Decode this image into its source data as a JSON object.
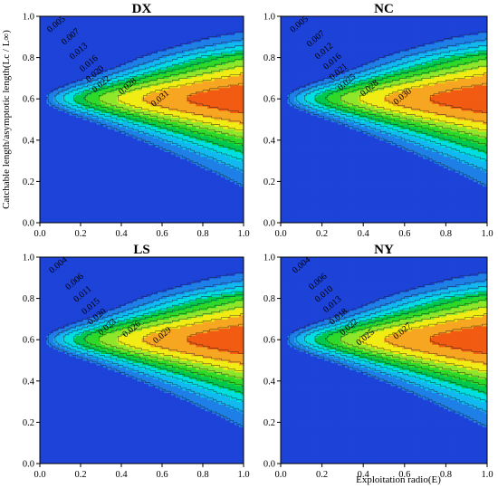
{
  "figure": {
    "ylabel": "Catchable length/asymptotic length(Lc / L∞)",
    "xlabel": "Exploitation radio(E)"
  },
  "chart_data": [
    {
      "type": "heatmap",
      "title": "DX",
      "x_ticks": [
        "0.0",
        "0.2",
        "0.4",
        "0.6",
        "0.8",
        "1.0"
      ],
      "y_ticks": [
        "0.0",
        "0.2",
        "0.4",
        "0.6",
        "0.8",
        "1.0"
      ],
      "xlim": [
        0,
        1
      ],
      "ylim": [
        0,
        1
      ],
      "contour_labels": [
        {
          "text": "0.005",
          "at": [
            0.05,
            0.92
          ]
        },
        {
          "text": "0.007",
          "at": [
            0.12,
            0.86
          ]
        },
        {
          "text": "0.013",
          "at": [
            0.16,
            0.79
          ]
        },
        {
          "text": "0.016",
          "at": [
            0.21,
            0.73
          ]
        },
        {
          "text": "0.020",
          "at": [
            0.24,
            0.68
          ]
        },
        {
          "text": "0.022",
          "at": [
            0.27,
            0.63
          ]
        },
        {
          "text": "0.028",
          "at": [
            0.4,
            0.62
          ]
        },
        {
          "text": "0.031",
          "at": [
            0.56,
            0.56
          ]
        }
      ]
    },
    {
      "type": "heatmap",
      "title": "NC",
      "x_ticks": [
        "0.0",
        "0.2",
        "0.4",
        "0.6",
        "0.8",
        "1.0"
      ],
      "y_ticks": [
        "0.0",
        "0.2",
        "0.4",
        "0.6",
        "0.8",
        "1.0"
      ],
      "xlim": [
        0,
        1
      ],
      "ylim": [
        0,
        1
      ],
      "contour_labels": [
        {
          "text": "0.005",
          "at": [
            0.06,
            0.92
          ]
        },
        {
          "text": "0.007",
          "at": [
            0.14,
            0.85
          ]
        },
        {
          "text": "0.012",
          "at": [
            0.18,
            0.79
          ]
        },
        {
          "text": "0.016",
          "at": [
            0.22,
            0.74
          ]
        },
        {
          "text": "0.021",
          "at": [
            0.25,
            0.69
          ]
        },
        {
          "text": "0.025",
          "at": [
            0.29,
            0.64
          ]
        },
        {
          "text": "0.028",
          "at": [
            0.4,
            0.61
          ]
        },
        {
          "text": "0.030",
          "at": [
            0.56,
            0.57
          ]
        }
      ]
    },
    {
      "type": "heatmap",
      "title": "LS",
      "x_ticks": [
        "0.0",
        "0.2",
        "0.4",
        "0.6",
        "0.8",
        "1.0"
      ],
      "y_ticks": [
        "0.0",
        "0.2",
        "0.4",
        "0.6",
        "0.8",
        "1.0"
      ],
      "xlim": [
        0,
        1
      ],
      "ylim": [
        0,
        1
      ],
      "contour_labels": [
        {
          "text": "0.004",
          "at": [
            0.06,
            0.92
          ]
        },
        {
          "text": "0.006",
          "at": [
            0.14,
            0.84
          ]
        },
        {
          "text": "0.011",
          "at": [
            0.18,
            0.78
          ]
        },
        {
          "text": "0.015",
          "at": [
            0.22,
            0.72
          ]
        },
        {
          "text": "0.020",
          "at": [
            0.25,
            0.67
          ]
        },
        {
          "text": "0.023",
          "at": [
            0.3,
            0.62
          ]
        },
        {
          "text": "0.026",
          "at": [
            0.42,
            0.61
          ]
        },
        {
          "text": "0.029",
          "at": [
            0.57,
            0.58
          ]
        }
      ]
    },
    {
      "type": "heatmap",
      "title": "NY",
      "x_ticks": [
        "0.0",
        "0.2",
        "0.4",
        "0.6",
        "0.8",
        "1.0"
      ],
      "y_ticks": [
        "0.0",
        "0.2",
        "0.4",
        "0.6",
        "0.8",
        "1.0"
      ],
      "xlim": [
        0,
        1
      ],
      "ylim": [
        0,
        1
      ],
      "contour_labels": [
        {
          "text": "0.004",
          "at": [
            0.07,
            0.92
          ]
        },
        {
          "text": "0.006",
          "at": [
            0.15,
            0.84
          ]
        },
        {
          "text": "0.010",
          "at": [
            0.18,
            0.78
          ]
        },
        {
          "text": "0.013",
          "at": [
            0.22,
            0.73
          ]
        },
        {
          "text": "0.018",
          "at": [
            0.25,
            0.67
          ]
        },
        {
          "text": "0.022",
          "at": [
            0.3,
            0.62
          ]
        },
        {
          "text": "0.025",
          "at": [
            0.38,
            0.57
          ]
        },
        {
          "text": "0.027",
          "at": [
            0.56,
            0.6
          ]
        }
      ]
    }
  ],
  "colors": {
    "bands": [
      "#1d43d8",
      "#1e80e6",
      "#12b9f0",
      "#00dfe0",
      "#00c84f",
      "#2fd92a",
      "#8fe62a",
      "#f0ec14",
      "#f6a620",
      "#f25b12"
    ],
    "axis": "#000000"
  }
}
